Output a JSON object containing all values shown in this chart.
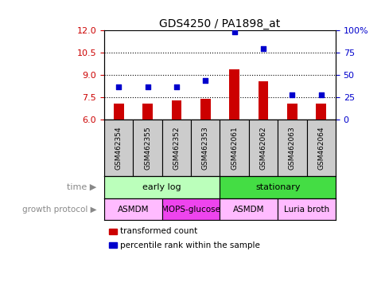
{
  "title": "GDS4250 / PA1898_at",
  "samples": [
    "GSM462354",
    "GSM462355",
    "GSM462352",
    "GSM462353",
    "GSM462061",
    "GSM462062",
    "GSM462063",
    "GSM462064"
  ],
  "bar_values": [
    7.1,
    7.1,
    7.3,
    7.4,
    9.4,
    8.6,
    7.1,
    7.1
  ],
  "dot_values": [
    37,
    37,
    37,
    44,
    99,
    80,
    28,
    28
  ],
  "ylim_left": [
    6,
    12
  ],
  "ylim_right": [
    0,
    100
  ],
  "yticks_left": [
    6,
    7.5,
    9,
    10.5,
    12
  ],
  "yticks_right": [
    0,
    25,
    50,
    75,
    100
  ],
  "bar_color": "#cc0000",
  "dot_color": "#0000cc",
  "time_groups": [
    {
      "label": "early log",
      "start": 0,
      "end": 4,
      "color": "#bbffbb"
    },
    {
      "label": "stationary",
      "start": 4,
      "end": 8,
      "color": "#44dd44"
    }
  ],
  "protocol_groups": [
    {
      "label": "ASMDM",
      "start": 0,
      "end": 2,
      "color": "#ffbbff"
    },
    {
      "label": "MOPS-glucose",
      "start": 2,
      "end": 4,
      "color": "#ee44ee"
    },
    {
      "label": "ASMDM",
      "start": 4,
      "end": 6,
      "color": "#ffbbff"
    },
    {
      "label": "Luria broth",
      "start": 6,
      "end": 8,
      "color": "#ffbbff"
    }
  ],
  "legend_bar_label": "transformed count",
  "legend_dot_label": "percentile rank within the sample",
  "time_label": "time",
  "protocol_label": "growth protocol",
  "sample_box_color": "#cccccc",
  "arrow_color": "#aaaaaa"
}
